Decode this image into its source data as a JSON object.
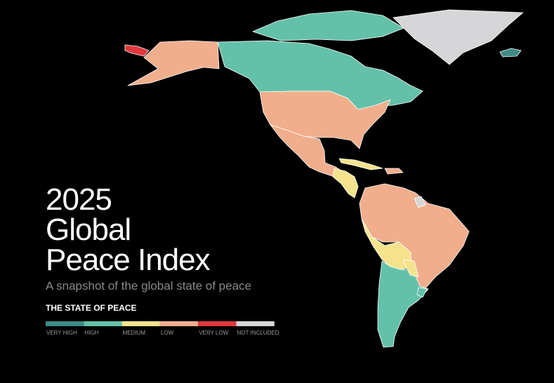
{
  "title_lines": [
    "2025",
    "Global",
    "Peace Index"
  ],
  "subtitle": "A snapshot of the global state of peace",
  "legend": {
    "title": "THE STATE OF PEACE",
    "items": [
      {
        "label": "VERY HIGH",
        "color": "#3d8a86"
      },
      {
        "label": "HIGH",
        "color": "#63c1a9"
      },
      {
        "label": "MEDIUM",
        "color": "#f4e38c"
      },
      {
        "label": "LOW",
        "color": "#f0ae8c"
      },
      {
        "label": "VERY LOW",
        "color": "#e0393e"
      },
      {
        "label": "NOT INCLUDED",
        "color": "#d6d6d8"
      }
    ]
  }
}
